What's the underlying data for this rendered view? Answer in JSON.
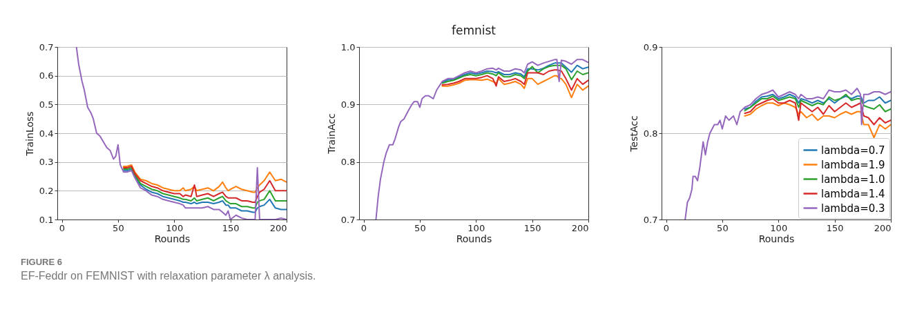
{
  "chart_data": [
    {
      "type": "line",
      "xlabel": "Rounds",
      "ylabel": "TrainLoss",
      "xlim": [
        -4,
        200
      ],
      "ylim": [
        0.1,
        0.7
      ],
      "xticks": [
        0,
        50,
        100,
        150,
        200
      ],
      "yticks": [
        0.1,
        0.2,
        0.3,
        0.4,
        0.5,
        0.6,
        0.7
      ],
      "grid": "y",
      "annotations": [
        "FIGURE 6",
        "EF-Feddr on FEMNIST with relaxation parameter λ analysis."
      ],
      "x": [
        13,
        15,
        18,
        20,
        23,
        26,
        28,
        31,
        34,
        37,
        40,
        43,
        46,
        48,
        50,
        52,
        55,
        58,
        62,
        65,
        70,
        75,
        80,
        85,
        90,
        95,
        100,
        105,
        108,
        110,
        115,
        118,
        120,
        125,
        130,
        135,
        140,
        143,
        146,
        148,
        150,
        155,
        160,
        165,
        170,
        172,
        174,
        176,
        180,
        185,
        190,
        195,
        200
      ],
      "series": [
        {
          "color": "#1f77b4",
          "values": [
            null,
            null,
            null,
            null,
            null,
            null,
            null,
            null,
            null,
            null,
            null,
            null,
            null,
            null,
            null,
            null,
            0.27,
            0.27,
            0.275,
            0.25,
            0.22,
            0.205,
            0.195,
            0.19,
            0.18,
            0.175,
            0.17,
            0.165,
            0.16,
            0.16,
            0.155,
            0.16,
            0.155,
            0.16,
            0.16,
            0.155,
            0.16,
            0.165,
            0.15,
            0.15,
            0.14,
            0.14,
            0.13,
            0.13,
            0.125,
            0.125,
            0.14,
            0.145,
            0.15,
            0.17,
            0.14,
            0.135,
            0.135
          ]
        },
        {
          "color": "#ff7f0e",
          "values": [
            null,
            null,
            null,
            null,
            null,
            null,
            null,
            null,
            null,
            null,
            null,
            null,
            null,
            null,
            null,
            null,
            0.285,
            0.285,
            0.29,
            0.265,
            0.24,
            0.235,
            0.225,
            0.22,
            0.21,
            0.205,
            0.2,
            0.2,
            0.21,
            0.2,
            0.205,
            0.215,
            0.2,
            0.205,
            0.21,
            0.2,
            0.215,
            0.23,
            0.21,
            0.2,
            0.205,
            0.215,
            0.205,
            0.2,
            0.195,
            0.195,
            0.21,
            0.22,
            0.235,
            0.265,
            0.235,
            0.24,
            0.23
          ]
        },
        {
          "color": "#2ca02c",
          "values": [
            null,
            null,
            null,
            null,
            null,
            null,
            null,
            null,
            null,
            null,
            null,
            null,
            null,
            null,
            null,
            null,
            0.275,
            0.275,
            0.28,
            0.255,
            0.225,
            0.215,
            0.205,
            0.2,
            0.19,
            0.185,
            0.18,
            0.175,
            0.17,
            0.17,
            0.165,
            0.175,
            0.165,
            0.17,
            0.175,
            0.165,
            0.175,
            0.18,
            0.165,
            0.16,
            0.155,
            0.155,
            0.145,
            0.145,
            0.14,
            0.14,
            0.16,
            0.165,
            0.17,
            0.2,
            0.165,
            0.165,
            0.165
          ]
        },
        {
          "color": "#d62728",
          "values": [
            null,
            null,
            null,
            null,
            null,
            null,
            null,
            null,
            null,
            null,
            null,
            null,
            null,
            null,
            null,
            null,
            0.28,
            0.28,
            0.285,
            0.26,
            0.235,
            0.225,
            0.215,
            0.21,
            0.2,
            0.195,
            0.19,
            0.19,
            0.18,
            0.185,
            0.18,
            0.22,
            0.18,
            0.185,
            0.19,
            0.18,
            0.19,
            0.195,
            0.18,
            0.175,
            0.175,
            0.175,
            0.165,
            0.165,
            0.16,
            0.16,
            0.18,
            0.195,
            0.205,
            0.235,
            0.2,
            0.2,
            0.2
          ]
        },
        {
          "color": "#9467bd",
          "values": [
            0.7,
            0.64,
            0.58,
            0.55,
            0.49,
            0.47,
            0.45,
            0.4,
            0.39,
            0.37,
            0.35,
            0.34,
            0.31,
            0.32,
            0.36,
            0.29,
            0.265,
            0.265,
            0.27,
            0.245,
            0.21,
            0.2,
            0.185,
            0.18,
            0.17,
            0.165,
            0.16,
            0.155,
            0.15,
            0.14,
            0.14,
            0.14,
            0.14,
            0.14,
            0.145,
            0.135,
            0.135,
            0.125,
            0.115,
            0.13,
            0.1,
            0.115,
            0.105,
            0.1,
            0.1,
            0.1,
            0.28,
            0.1,
            0.1,
            0.1,
            0.1,
            0.105,
            0.1
          ]
        }
      ]
    },
    {
      "type": "line",
      "title": "femnist",
      "xlabel": "Rounds",
      "ylabel": "TrainAcc",
      "xlim": [
        -4,
        200
      ],
      "ylim": [
        0.7,
        1.0
      ],
      "xticks": [
        0,
        50,
        100,
        150,
        200
      ],
      "yticks": [
        0.7,
        0.8,
        0.9,
        {
          "value": 1,
          "label": "1.0"
        }
      ],
      "grid": "y",
      "x": [
        11,
        13,
        15,
        18,
        20,
        23,
        26,
        28,
        31,
        33,
        36,
        40,
        43,
        45,
        48,
        50,
        52,
        55,
        58,
        62,
        65,
        70,
        75,
        80,
        85,
        90,
        95,
        100,
        105,
        110,
        115,
        118,
        120,
        125,
        130,
        135,
        140,
        143,
        146,
        150,
        155,
        160,
        165,
        170,
        172,
        174,
        176,
        180,
        185,
        190,
        195,
        200
      ],
      "series": [
        {
          "color": "#1f77b4",
          "values": [
            null,
            null,
            null,
            null,
            null,
            null,
            null,
            null,
            null,
            null,
            null,
            null,
            null,
            null,
            null,
            null,
            null,
            null,
            null,
            null,
            null,
            0.938,
            0.943,
            0.943,
            0.948,
            0.952,
            0.955,
            0.953,
            0.955,
            0.958,
            0.957,
            0.955,
            0.957,
            0.952,
            0.952,
            0.955,
            0.953,
            0.948,
            0.962,
            0.962,
            0.96,
            0.963,
            0.968,
            0.972,
            0.972,
            null,
            0.972,
            0.965,
            0.956,
            0.968,
            0.962,
            0.965
          ]
        },
        {
          "color": "#ff7f0e",
          "values": [
            null,
            null,
            null,
            null,
            null,
            null,
            null,
            null,
            null,
            null,
            null,
            null,
            null,
            null,
            null,
            null,
            null,
            null,
            null,
            null,
            null,
            0.932,
            0.932,
            0.934,
            0.937,
            0.942,
            0.943,
            0.943,
            0.942,
            0.944,
            0.94,
            0.937,
            0.945,
            0.935,
            0.937,
            0.94,
            0.935,
            0.928,
            0.945,
            0.945,
            0.935,
            0.94,
            0.945,
            0.95,
            0.95,
            0.945,
            0.945,
            0.935,
            0.912,
            0.935,
            0.925,
            0.932
          ]
        },
        {
          "color": "#2ca02c",
          "values": [
            null,
            null,
            null,
            null,
            null,
            null,
            null,
            null,
            null,
            null,
            null,
            null,
            null,
            null,
            null,
            null,
            null,
            null,
            null,
            null,
            null,
            0.937,
            0.94,
            0.942,
            0.946,
            0.95,
            0.952,
            0.95,
            0.952,
            0.955,
            0.953,
            0.95,
            0.955,
            0.948,
            0.948,
            0.952,
            0.95,
            0.945,
            0.958,
            0.966,
            0.955,
            0.962,
            0.966,
            0.968,
            0.968,
            null,
            0.968,
            0.962,
            0.943,
            0.958,
            0.952,
            0.955
          ]
        },
        {
          "color": "#d62728",
          "values": [
            null,
            null,
            null,
            null,
            null,
            null,
            null,
            null,
            null,
            null,
            null,
            null,
            null,
            null,
            null,
            null,
            null,
            null,
            null,
            null,
            null,
            0.934,
            0.935,
            0.937,
            0.94,
            0.945,
            0.945,
            0.945,
            0.947,
            0.95,
            0.945,
            0.932,
            0.948,
            0.94,
            0.942,
            0.945,
            0.94,
            0.935,
            0.955,
            0.955,
            0.955,
            0.952,
            0.958,
            0.96,
            0.96,
            null,
            0.958,
            0.945,
            0.925,
            0.945,
            0.935,
            0.942
          ]
        },
        {
          "color": "#9467bd",
          "values": [
            0.7,
            0.74,
            0.77,
            0.8,
            0.815,
            0.83,
            0.83,
            0.84,
            0.86,
            0.87,
            0.875,
            0.89,
            0.9,
            0.905,
            0.905,
            0.895,
            0.91,
            0.915,
            0.915,
            0.91,
            0.925,
            0.94,
            0.945,
            0.945,
            0.95,
            0.955,
            0.958,
            0.955,
            0.958,
            0.962,
            0.963,
            0.96,
            0.963,
            0.958,
            0.958,
            0.962,
            0.96,
            0.955,
            0.97,
            0.974,
            0.968,
            0.972,
            0.975,
            0.978,
            0.978,
            0.94,
            0.977,
            0.975,
            0.97,
            0.978,
            0.978,
            0.973
          ]
        }
      ]
    },
    {
      "type": "line",
      "xlabel": "Rounds",
      "ylabel": "TestAcc",
      "xlim": [
        -4,
        200
      ],
      "ylim": [
        0.7,
        0.9
      ],
      "xticks": [
        0,
        50,
        100,
        150,
        200
      ],
      "yticks": [
        0.7,
        0.8,
        0.9
      ],
      "grid": "y",
      "legend": "bottom right",
      "x": [
        17,
        19,
        21,
        23,
        24,
        26,
        28,
        30,
        33,
        35,
        37,
        39,
        41,
        43,
        46,
        48,
        50,
        53,
        56,
        60,
        63,
        66,
        70,
        75,
        80,
        85,
        90,
        95,
        100,
        105,
        110,
        115,
        118,
        120,
        125,
        130,
        135,
        140,
        145,
        150,
        155,
        160,
        165,
        170,
        173,
        174,
        176,
        180,
        185,
        190,
        195,
        200
      ],
      "series": [
        {
          "name": "lambda=0.7",
          "color": "#1f77b4",
          "values": [
            null,
            null,
            null,
            null,
            null,
            null,
            null,
            null,
            null,
            null,
            null,
            null,
            null,
            null,
            null,
            null,
            null,
            null,
            null,
            null,
            null,
            null,
            0.828,
            0.83,
            0.837,
            0.842,
            0.843,
            0.845,
            0.84,
            0.842,
            0.845,
            0.842,
            0.835,
            0.84,
            0.838,
            0.835,
            0.838,
            0.835,
            0.84,
            0.835,
            0.84,
            0.843,
            0.84,
            0.843,
            0.843,
            null,
            0.835,
            0.838,
            0.838,
            0.842,
            0.835,
            0.838
          ]
        },
        {
          "name": "lambda=1.9",
          "color": "#ff7f0e",
          "values": [
            null,
            null,
            null,
            null,
            null,
            null,
            null,
            null,
            null,
            null,
            null,
            null,
            null,
            null,
            null,
            null,
            null,
            null,
            null,
            null,
            null,
            null,
            0.82,
            0.822,
            0.828,
            0.832,
            0.835,
            0.835,
            0.832,
            0.835,
            0.833,
            0.83,
            0.822,
            0.825,
            0.818,
            0.822,
            0.815,
            0.82,
            0.82,
            0.818,
            0.822,
            0.825,
            0.822,
            0.825,
            0.825,
            null,
            0.81,
            0.81,
            0.795,
            0.81,
            0.805,
            0.81
          ]
        },
        {
          "name": "lambda=1.0",
          "color": "#2ca02c",
          "values": [
            null,
            null,
            null,
            null,
            null,
            null,
            null,
            null,
            null,
            null,
            null,
            null,
            null,
            null,
            null,
            null,
            null,
            null,
            null,
            null,
            null,
            null,
            0.826,
            0.83,
            0.835,
            0.84,
            0.84,
            0.843,
            0.838,
            0.84,
            0.842,
            0.84,
            0.83,
            0.838,
            0.835,
            0.832,
            0.835,
            0.833,
            0.842,
            0.838,
            0.84,
            0.845,
            0.838,
            0.84,
            0.84,
            null,
            0.832,
            0.83,
            0.828,
            0.833,
            0.825,
            0.828
          ]
        },
        {
          "name": "lambda=1.4",
          "color": "#d62728",
          "values": [
            null,
            null,
            null,
            null,
            null,
            null,
            null,
            null,
            null,
            null,
            null,
            null,
            null,
            null,
            null,
            null,
            null,
            null,
            null,
            null,
            null,
            null,
            0.823,
            0.825,
            0.832,
            0.835,
            0.838,
            0.84,
            0.835,
            0.835,
            0.838,
            0.835,
            0.815,
            0.835,
            0.83,
            0.825,
            0.83,
            0.822,
            0.832,
            0.825,
            0.83,
            0.835,
            0.83,
            0.833,
            0.835,
            null,
            0.82,
            0.818,
            0.81,
            0.818,
            0.812,
            0.815
          ]
        },
        {
          "name": "lambda=0.3",
          "color": "#9467bd",
          "values": [
            0.7,
            0.72,
            0.725,
            0.735,
            0.75,
            0.75,
            0.745,
            0.76,
            0.79,
            0.775,
            0.79,
            0.8,
            0.805,
            0.81,
            0.81,
            0.815,
            0.805,
            0.82,
            0.815,
            0.82,
            0.81,
            0.825,
            0.83,
            0.833,
            0.84,
            0.845,
            0.847,
            0.85,
            0.842,
            0.845,
            0.848,
            0.845,
            0.84,
            0.845,
            0.84,
            0.84,
            0.842,
            0.84,
            0.85,
            0.848,
            0.848,
            0.85,
            0.845,
            0.852,
            0.845,
            0.81,
            0.845,
            0.845,
            0.848,
            0.848,
            0.845,
            0.848
          ]
        }
      ]
    }
  ]
}
